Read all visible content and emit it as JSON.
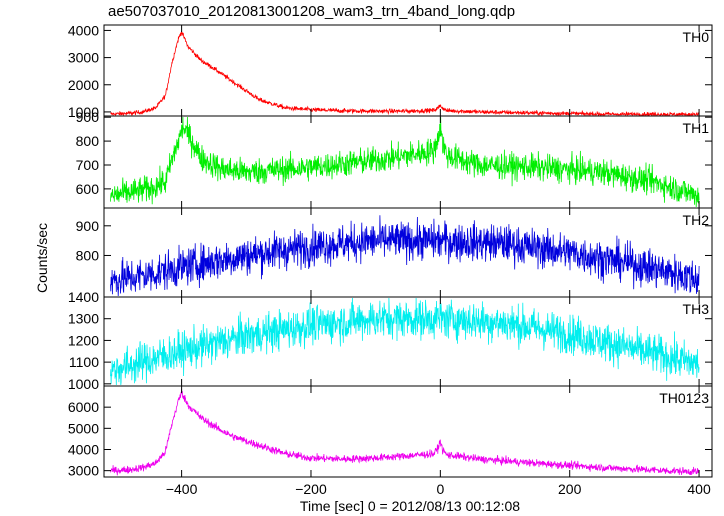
{
  "title": "ae507037010_20120813001208_wam3_trn_4band_long.qdp",
  "ylabel": "Counts/sec",
  "xlabel": "Time [sec] 0 = 2012/08/13 00:12:08",
  "chart_data": {
    "type": "line",
    "title": "ae507037010_20120813001208_wam3_trn_4band_long.qdp",
    "xlabel": "Time [sec] 0 = 2012/08/13 00:12:08",
    "ylabel": "Counts/sec",
    "xlim": [
      -520,
      420
    ],
    "x_ticks": [
      -400,
      -200,
      0,
      200,
      400
    ],
    "x_tick_labels": [
      "−400",
      "−200",
      "0",
      "200",
      "400"
    ],
    "grid": false,
    "panels": [
      {
        "name": "TH0",
        "color": "#ff0000",
        "ylim": [
          850,
          4200
        ],
        "y_ticks": [
          1000,
          2000,
          3000,
          4000
        ],
        "noise": 40,
        "series": {
          "x": [
            -510,
            -480,
            -460,
            -440,
            -425,
            -415,
            -405,
            -400,
            -390,
            -370,
            -350,
            -320,
            -280,
            -240,
            -200,
            -150,
            -100,
            -50,
            -10,
            -3,
            0,
            3,
            10,
            60,
            150,
            250,
            350,
            400
          ],
          "y": [
            920,
            950,
            1000,
            1150,
            1600,
            2800,
            3700,
            3950,
            3400,
            2900,
            2600,
            2100,
            1450,
            1150,
            1080,
            1040,
            1030,
            1030,
            1060,
            1150,
            1250,
            1150,
            1050,
            1000,
            960,
            920,
            910,
            900
          ]
        }
      },
      {
        "name": "TH1",
        "color": "#00ee00",
        "ylim": [
          520,
          905
        ],
        "y_ticks": [
          600,
          700,
          800,
          900
        ],
        "noise": 28,
        "series": {
          "x": [
            -510,
            -480,
            -450,
            -425,
            -415,
            -405,
            -398,
            -390,
            -370,
            -340,
            -300,
            -200,
            -100,
            -50,
            -10,
            -3,
            0,
            3,
            10,
            60,
            150,
            250,
            330,
            400
          ],
          "y": [
            570,
            585,
            600,
            630,
            720,
            800,
            860,
            830,
            730,
            685,
            670,
            690,
            720,
            740,
            760,
            820,
            870,
            800,
            740,
            700,
            690,
            670,
            630,
            570
          ]
        }
      },
      {
        "name": "TH2",
        "color": "#0000dd",
        "ylim": [
          660,
          960
        ],
        "y_ticks": [
          800,
          900
        ],
        "noise": 32,
        "series": {
          "x": [
            -510,
            -450,
            -400,
            -300,
            -200,
            -100,
            0,
            100,
            200,
            300,
            400
          ],
          "y": [
            715,
            735,
            760,
            800,
            830,
            850,
            850,
            840,
            810,
            770,
            720
          ]
        }
      },
      {
        "name": "TH3",
        "color": "#00eeee",
        "ylim": [
          990,
          1400
        ],
        "y_ticks": [
          1000,
          1100,
          1200,
          1300,
          1400
        ],
        "noise": 45,
        "series": {
          "x": [
            -510,
            -450,
            -400,
            -300,
            -200,
            -100,
            0,
            100,
            200,
            300,
            400
          ],
          "y": [
            1060,
            1110,
            1150,
            1220,
            1270,
            1300,
            1300,
            1280,
            1230,
            1160,
            1090
          ]
        }
      },
      {
        "name": "TH0123",
        "color": "#ee00ee",
        "ylim": [
          2700,
          7000
        ],
        "y_ticks": [
          3000,
          4000,
          5000,
          6000
        ],
        "noise": 90,
        "series": {
          "x": [
            -510,
            -480,
            -460,
            -440,
            -425,
            -415,
            -405,
            -400,
            -390,
            -370,
            -350,
            -320,
            -280,
            -240,
            -200,
            -150,
            -100,
            -50,
            -10,
            -3,
            0,
            3,
            10,
            60,
            150,
            250,
            350,
            400
          ],
          "y": [
            3000,
            3050,
            3150,
            3350,
            3900,
            5200,
            6300,
            6700,
            6100,
            5500,
            5100,
            4600,
            4200,
            3800,
            3600,
            3550,
            3600,
            3700,
            3800,
            4100,
            4400,
            4000,
            3750,
            3550,
            3350,
            3150,
            3000,
            2950
          ]
        }
      }
    ]
  }
}
